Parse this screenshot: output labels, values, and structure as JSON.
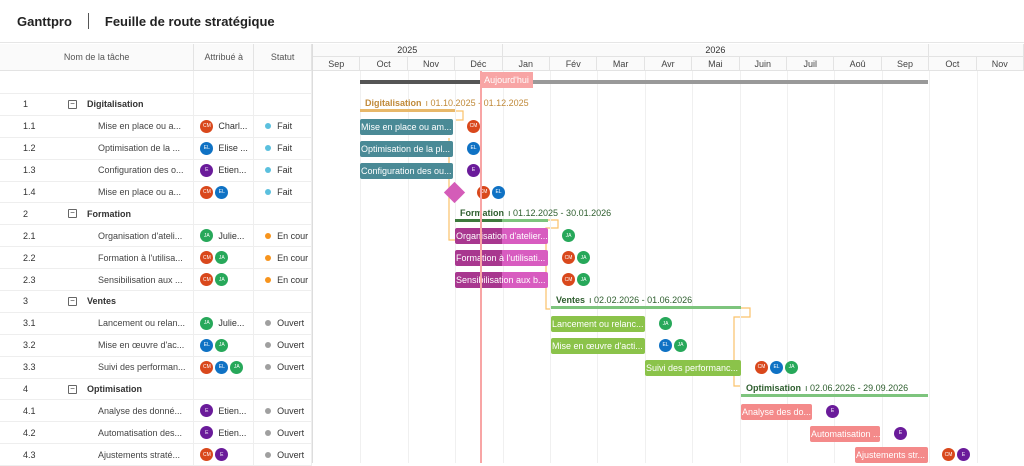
{
  "header": {
    "brand": "Ganttpro",
    "title": "Feuille de route stratégique"
  },
  "columns": {
    "name": "Nom de la tâche",
    "assigned": "Attribué à",
    "status": "Statut"
  },
  "timeline": {
    "years": [
      "2025",
      "2026"
    ],
    "months": [
      "Sep",
      "Oct",
      "Nov",
      "Déc",
      "Jan",
      "Fév",
      "Mar",
      "Avr",
      "Mai",
      "Juin",
      "Juil",
      "Aoû",
      "Sep",
      "Oct",
      "Nov"
    ],
    "today_label": "Aujourd'hui"
  },
  "colors": {
    "fait": "#5bc0de",
    "en_cours": "#f7941d",
    "ouvert": "#a0a0a0",
    "CM": "#d9481c",
    "EL": "#0f72c4",
    "E": "#6a1b9a",
    "JA": "#27a85a"
  },
  "rows": [
    {
      "num": "1",
      "name": "Digitalisation",
      "group": true,
      "dates": "01.10.2025 - 01.12.2025"
    },
    {
      "num": "1.1",
      "name": "Mise en place ou a...",
      "bar": "Mise en place ou am...",
      "avatars": [
        "CM"
      ],
      "assignee": "Charl...",
      "status": "Fait"
    },
    {
      "num": "1.2",
      "name": "Optimisation de la ...",
      "bar": "Optimisation de la pl...",
      "avatars": [
        "EL"
      ],
      "assignee": "Elise ...",
      "status": "Fait"
    },
    {
      "num": "1.3",
      "name": "Configuration des o...",
      "bar": "Configuration des ou...",
      "avatars": [
        "E"
      ],
      "assignee": "Etien...",
      "status": "Fait"
    },
    {
      "num": "1.4",
      "name": "Mise en place ou a...",
      "avatars": [
        "CM",
        "EL"
      ],
      "status": "Fait"
    },
    {
      "num": "2",
      "name": "Formation",
      "group": true,
      "dates": "01.12.2025 - 30.01.2026"
    },
    {
      "num": "2.1",
      "name": "Organisation d'ateli...",
      "bar": "Organisation d'atelier...",
      "avatars": [
        "JA"
      ],
      "assignee": "Julie...",
      "status": "En cour"
    },
    {
      "num": "2.2",
      "name": "Formation à l'utilisa...",
      "bar": "Formation à l'utilisati...",
      "avatars": [
        "CM",
        "JA"
      ],
      "status": "En cour"
    },
    {
      "num": "2.3",
      "name": "Sensibilisation aux ...",
      "bar": "Sensibilisation aux b...",
      "avatars": [
        "CM",
        "JA"
      ],
      "status": "En cour"
    },
    {
      "num": "3",
      "name": "Ventes",
      "group": true,
      "dates": "02.02.2026 - 01.06.2026"
    },
    {
      "num": "3.1",
      "name": "Lancement ou relan...",
      "bar": "Lancement ou relanc...",
      "avatars": [
        "JA"
      ],
      "assignee": "Julie...",
      "status": "Ouvert"
    },
    {
      "num": "3.2",
      "name": "Mise en œuvre d'ac...",
      "bar": "Mise en œuvre d'acti...",
      "avatars": [
        "EL",
        "JA"
      ],
      "status": "Ouvert"
    },
    {
      "num": "3.3",
      "name": "Suivi des performan...",
      "bar": "Suivi des performanc...",
      "avatars": [
        "CM",
        "EL",
        "JA"
      ],
      "status": "Ouvert"
    },
    {
      "num": "4",
      "name": "Optimisation",
      "group": true,
      "dates": "02.06.2026 - 29.09.2026"
    },
    {
      "num": "4.1",
      "name": "Analyse des donné...",
      "bar": "Analyse des do...",
      "avatars": [
        "E"
      ],
      "assignee": "Etien...",
      "status": "Ouvert"
    },
    {
      "num": "4.2",
      "name": "Automatisation des...",
      "bar": "Automatisation ...",
      "avatars": [
        "E"
      ],
      "assignee": "Etien...",
      "status": "Ouvert"
    },
    {
      "num": "4.3",
      "name": "Ajustements straté...",
      "bar": "Ajustements str...",
      "avatars": [
        "CM",
        "E"
      ],
      "status": "Ouvert"
    }
  ]
}
